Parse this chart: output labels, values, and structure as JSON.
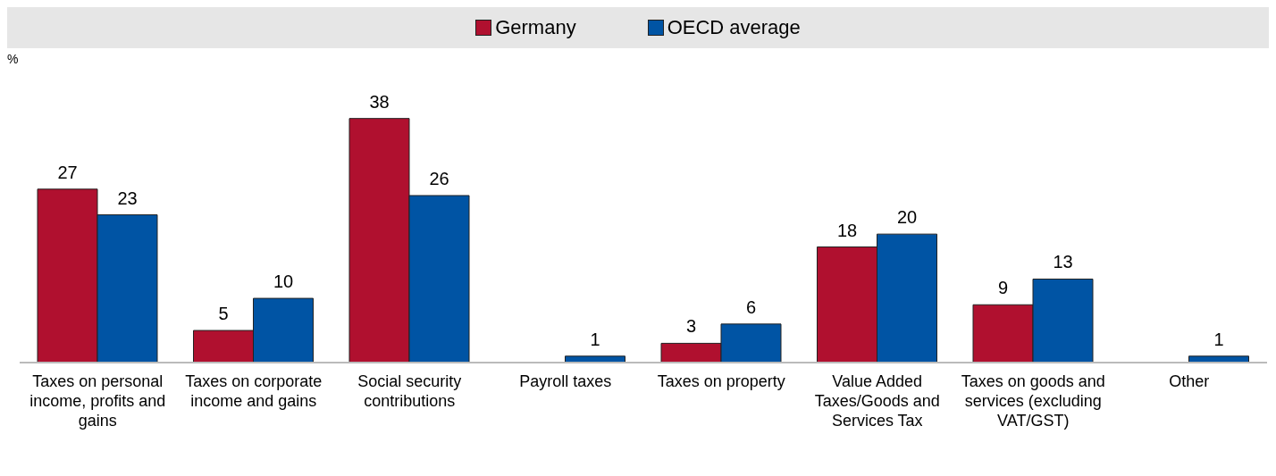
{
  "chart_data": {
    "type": "bar",
    "ylabel": "%",
    "categories": [
      "Taxes on personal income, profits and gains",
      "Taxes on corporate income and gains",
      "Social security contributions",
      "Payroll taxes",
      "Taxes on property",
      "Value Added Taxes/Goods and Services Tax",
      "Taxes on goods and services (excluding VAT/GST)",
      "Other"
    ],
    "series": [
      {
        "name": "Germany",
        "color": "#b0102f",
        "values": [
          27,
          5,
          38,
          null,
          3,
          18,
          9,
          null
        ],
        "value_labels": [
          "27",
          "5",
          "38",
          null,
          "3",
          "18",
          "9",
          null
        ]
      },
      {
        "name": "OECD average",
        "color": "#0054a4",
        "values": [
          23,
          10,
          26,
          1,
          6,
          20,
          13,
          1
        ],
        "value_labels": [
          "23",
          "10",
          "26",
          "1",
          "6",
          "20",
          "13",
          "1"
        ]
      }
    ],
    "legend": "top"
  }
}
